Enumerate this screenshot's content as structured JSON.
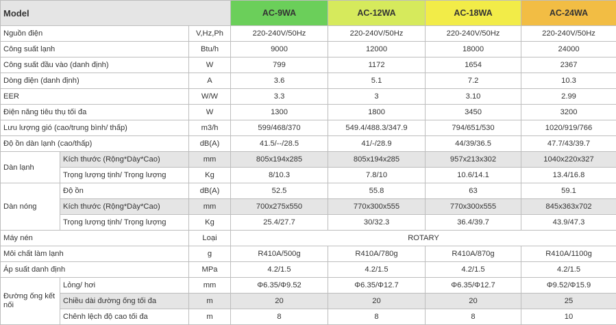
{
  "colors": {
    "ac9": "#6bcf5a",
    "ac12": "#d6ea5c",
    "ac18": "#f2ec48",
    "ac24": "#f2bd44",
    "shade": "#e5e5e5",
    "border": "#bdbdbd"
  },
  "header": {
    "model_label": "Model",
    "models": [
      "AC-9WA",
      "AC-12WA",
      "AC-18WA",
      "AC-24WA"
    ]
  },
  "rows": {
    "nguon_dien": {
      "label": "Nguồn điện",
      "unit": "V,Hz,Ph",
      "values": [
        "220-240V/50Hz",
        "220-240V/50Hz",
        "220-240V/50Hz",
        "220-240V/50Hz"
      ]
    },
    "cong_suat_lanh": {
      "label": "Công suất lạnh",
      "unit": "Btu/h",
      "values": [
        "9000",
        "12000",
        "18000",
        "24000"
      ]
    },
    "cong_suat_dau_vao": {
      "label": "Công suất đầu vào (danh định)",
      "unit": "W",
      "values": [
        "799",
        "1172",
        "1654",
        "2367"
      ]
    },
    "dong_dien": {
      "label": "Dòng điện (danh định)",
      "unit": "A",
      "values": [
        "3.6",
        "5.1",
        "7.2",
        "10.3"
      ]
    },
    "eer": {
      "label": "EER",
      "unit": "W/W",
      "values": [
        "3.3",
        "3",
        "3.10",
        "2.99"
      ]
    },
    "dien_nang": {
      "label": "Điện năng tiêu thụ tối đa",
      "unit": "W",
      "values": [
        "1300",
        "1800",
        "3450",
        "3200"
      ]
    },
    "luu_luong_gio": {
      "label": "Lưu lượng gió (cao/trung bình/ thấp)",
      "unit": "m3/h",
      "values": [
        "599/468/370",
        "549.4/488.3/347.9",
        "794/651/530",
        "1020/919/766"
      ]
    },
    "do_on_dan_lanh": {
      "label": "Độ ồn dàn lạnh (cao/thấp)",
      "unit": "dB(A)",
      "values": [
        "41.5/--/28.5",
        "41/-/28.9",
        "44/39/36.5",
        "47.7/43/39.7"
      ]
    }
  },
  "dan_lanh": {
    "group_label": "Dàn lạnh",
    "rows": [
      {
        "label": "Kích thước (Rộng*Dày*Cao)",
        "unit": "mm",
        "values": [
          "805x194x285",
          "805x194x285",
          "957x213x302",
          "1040x220x327"
        ]
      },
      {
        "label": "Trọng lượng tịnh/ Trọng lượng",
        "unit": "Kg",
        "values": [
          "8/10.3",
          "7.8/10",
          "10.6/14.1",
          "13.4/16.8"
        ]
      }
    ]
  },
  "dan_nong": {
    "group_label": "Dàn nóng",
    "rows": [
      {
        "label": "Độ ồn",
        "unit": "dB(A)",
        "values": [
          "52.5",
          "55.8",
          "63",
          "59.1"
        ]
      },
      {
        "label": "Kích thước (Rộng*Dày*Cao)",
        "unit": "mm",
        "values": [
          "700x275x550",
          "770x300x555",
          "770x300x555",
          "845x363x702"
        ]
      },
      {
        "label": "Trọng lượng tịnh/ Trọng lượng",
        "unit": "Kg",
        "values": [
          "25.4/27.7",
          "30/32.3",
          "36.4/39.7",
          "43.9/47.3"
        ]
      }
    ]
  },
  "may_nen": {
    "label": "Máy nén",
    "unit": "Loại",
    "value": "ROTARY"
  },
  "moi_chat": {
    "label": "Môi chất làm lạnh",
    "unit": "g",
    "values": [
      "R410A/500g",
      "R410A/780g",
      "R410A/870g",
      "R410A/1100g"
    ]
  },
  "ap_suat": {
    "label": "Áp suất danh định",
    "unit": "MPa",
    "values": [
      "4.2/1.5",
      "4.2/1.5",
      "4.2/1.5",
      "4.2/1.5"
    ]
  },
  "duong_ong": {
    "group_label": "Đường ống kết nối",
    "rows": [
      {
        "label": "Lỏng/ hơi",
        "unit": "mm",
        "values": [
          "Φ6.35/Φ9.52",
          "Φ6.35/Φ12.7",
          "Φ6.35/Φ12.7",
          "Φ9.52/Φ15.9"
        ]
      },
      {
        "label": "Chiều dài đường ống tối đa",
        "unit": "m",
        "values": [
          "20",
          "20",
          "20",
          "25"
        ]
      },
      {
        "label": "Chênh lệch độ cao tối đa",
        "unit": "m",
        "values": [
          "8",
          "8",
          "8",
          "10"
        ]
      }
    ]
  }
}
